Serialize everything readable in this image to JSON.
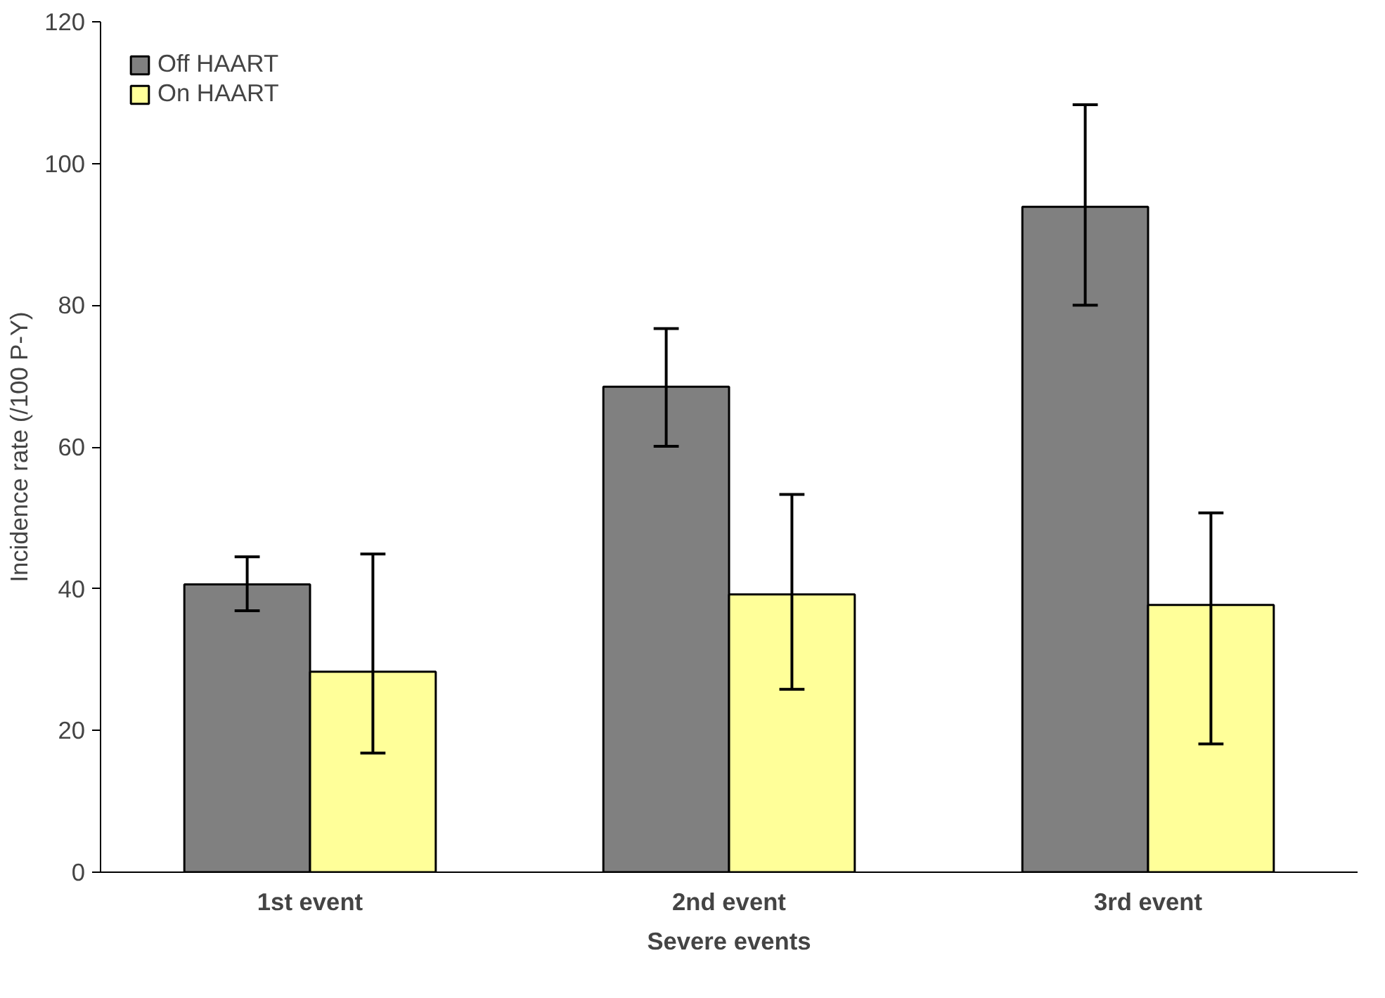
{
  "chart_data": {
    "type": "bar",
    "xlabel": "Severe events",
    "ylabel": "Incidence rate (/100 P-Y)",
    "categories": [
      "1st event",
      "2nd event",
      "3rd event"
    ],
    "series": [
      {
        "name": "Off HAART",
        "color": "#808080",
        "values": [
          40.6,
          68.5,
          93.9
        ],
        "errors": [
          [
            36.9,
            44.5
          ],
          [
            60.1,
            76.7
          ],
          [
            80.0,
            108.3
          ]
        ]
      },
      {
        "name": "On HAART",
        "color": "#ffff99",
        "values": [
          28.3,
          39.2,
          37.7
        ],
        "errors": [
          [
            16.8,
            44.9
          ],
          [
            25.8,
            53.3
          ],
          [
            18.1,
            50.7
          ]
        ]
      }
    ],
    "ylim": [
      0,
      120
    ],
    "yticks": [
      0,
      20,
      40,
      60,
      80,
      100,
      120
    ],
    "grid": false,
    "legend": "top left"
  }
}
